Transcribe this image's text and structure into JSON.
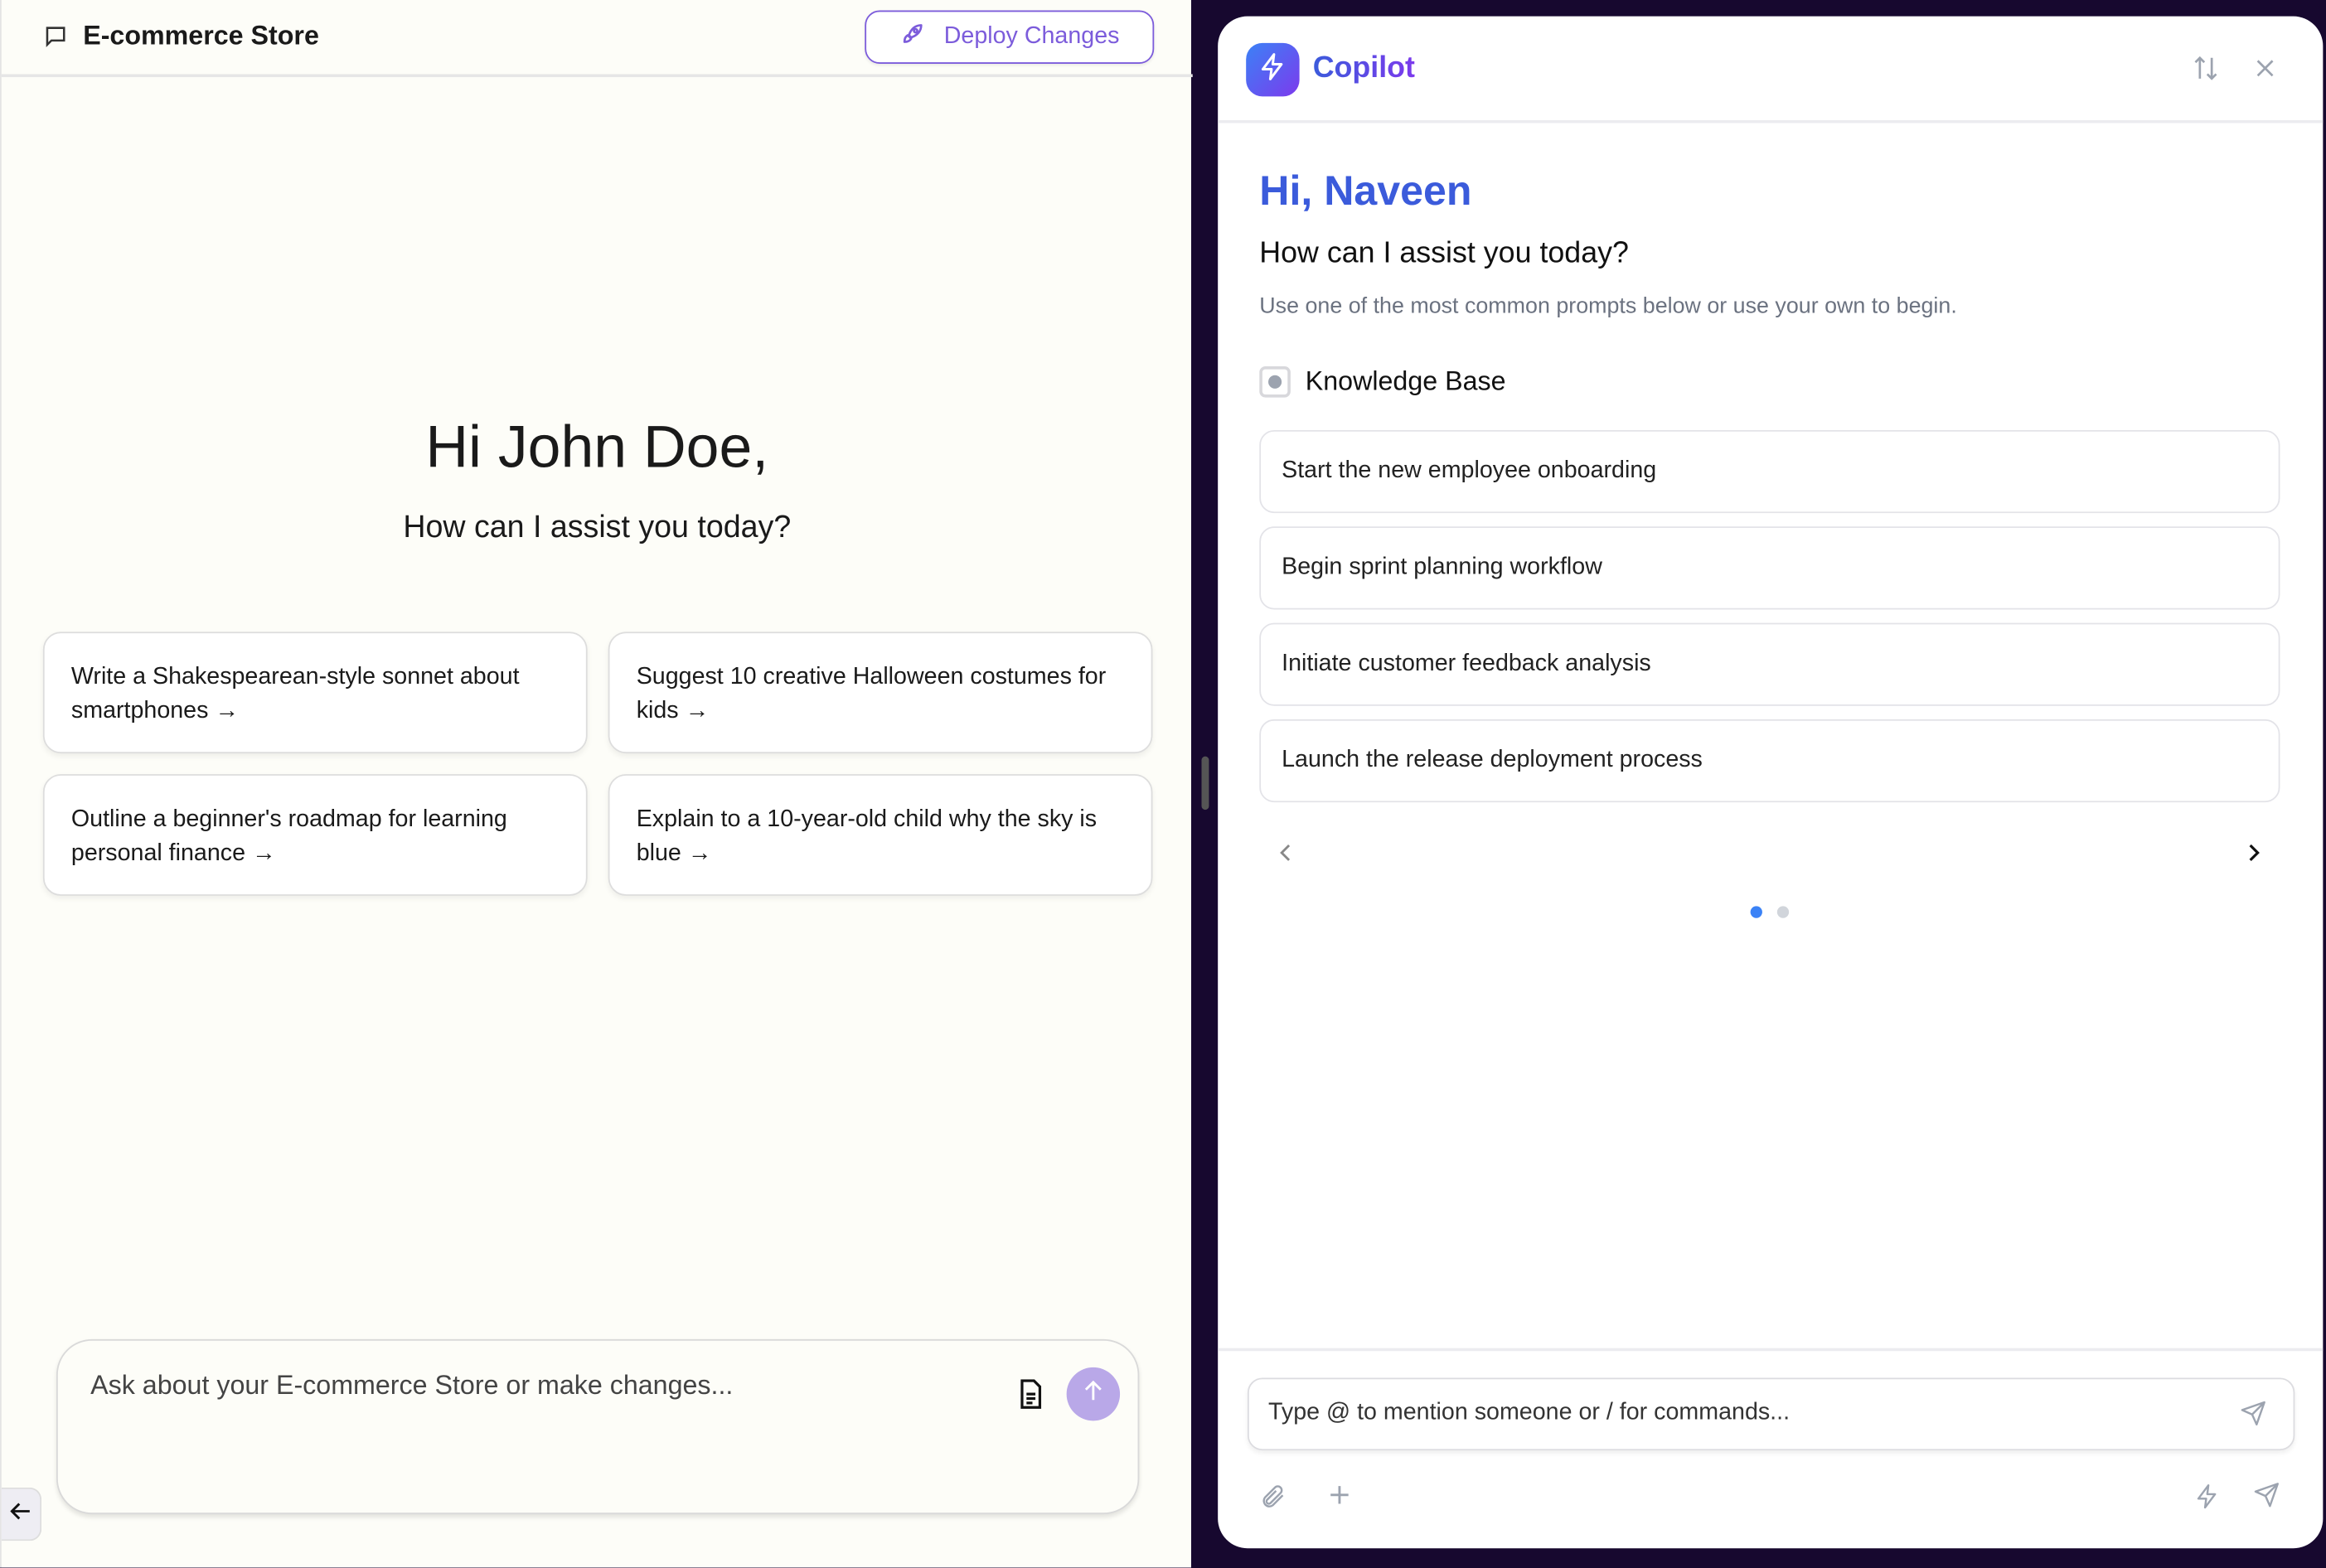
{
  "app": {
    "title": "E-commerce Store",
    "deploy_label": "Deploy Changes"
  },
  "main": {
    "greeting": "Hi John Doe,",
    "subtitle": "How can I assist you today?",
    "suggestions": [
      {
        "label": "Write a Shakespearean-style sonnet about smartphones →"
      },
      {
        "label": "Suggest 10 creative Halloween costumes for kids →"
      },
      {
        "label": "Outline a beginner's roadmap for learning personal finance →"
      },
      {
        "label": "Explain to a 10-year-old child why the sky is blue →"
      }
    ],
    "input_placeholder": "Ask about your E-commerce Store or make changes..."
  },
  "copilot": {
    "title": "Copilot",
    "greeting": "Hi, Naveen",
    "question": "How can I assist you today?",
    "description": "Use one of the most common prompts below or use your own to begin.",
    "knowledge_base_label": "Knowledge Base",
    "prompts": [
      {
        "label": "Start the new employee onboarding"
      },
      {
        "label": "Begin sprint planning workflow"
      },
      {
        "label": "Initiate customer feedback analysis"
      },
      {
        "label": "Launch the release deployment process"
      }
    ],
    "carousel": {
      "page": 1,
      "pages": 2
    },
    "input_placeholder": "Type @ to mention someone or / for commands..."
  },
  "colors": {
    "accent": "#7c5cdb",
    "copilot_blue": "#3b5bdb",
    "panel_bg": "#17082f",
    "send_button": "#b9a8e8"
  }
}
